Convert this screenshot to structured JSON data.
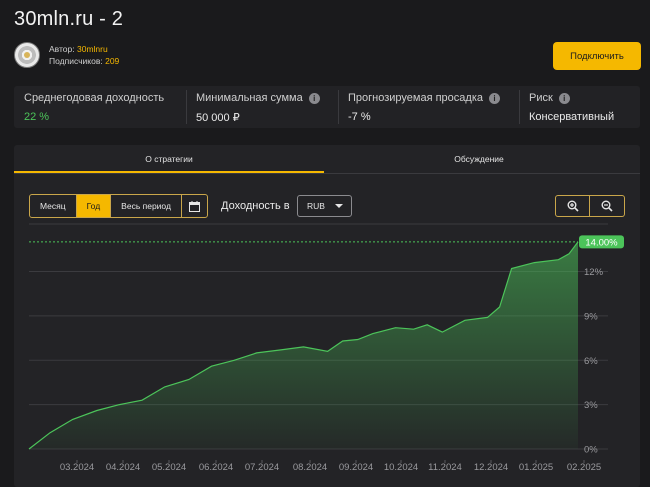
{
  "title": "30mln.ru - 2",
  "author": {
    "label": "Автор:",
    "name": "30mlnru",
    "subs_label": "Подписчиков:",
    "subs_count": "209"
  },
  "connect_label": "Подключить",
  "stats": [
    {
      "label": "Среднегодовая доходность",
      "value": "22 %",
      "has_info": false,
      "value_color": "#4cc45a"
    },
    {
      "label": "Минимальная сумма",
      "value": "50 000 ₽",
      "has_info": true
    },
    {
      "label": "Прогнозируемая просадка",
      "value": "-7 %",
      "has_info": true
    },
    {
      "label": "Риск",
      "value": "Консервативный",
      "has_info": true
    }
  ],
  "tabs": [
    {
      "label": "О стратегии",
      "active": true
    },
    {
      "label": "Обсуждение",
      "active": false
    }
  ],
  "periods": [
    {
      "label": "Месяц",
      "selected": false
    },
    {
      "label": "Год",
      "selected": true
    },
    {
      "label": "Весь период",
      "selected": false
    }
  ],
  "yield_label": "Доходность в",
  "currency": "RUB",
  "accent_color": "#f5b800",
  "chart_data": {
    "type": "area",
    "x_ticks": [
      "03.2024",
      "04.2024",
      "05.2024",
      "06.2024",
      "07.2024",
      "08.2024",
      "09.2024",
      "10.2024",
      "11.2024",
      "12.2024",
      "01.2025",
      "02.2025"
    ],
    "y_ticks": [
      "0%",
      "3%",
      "6%",
      "9%",
      "12%"
    ],
    "ylim": [
      0,
      14.4
    ],
    "current_label": "14.00%",
    "current_value": 14.0,
    "series": [
      {
        "color": "#4cc45a",
        "x": [
          "2024-02-20",
          "2024-03-05",
          "2024-03-20",
          "2024-04-05",
          "2024-04-20",
          "2024-05-05",
          "2024-05-20",
          "2024-06-05",
          "2024-06-20",
          "2024-07-05",
          "2024-07-20",
          "2024-08-05",
          "2024-08-20",
          "2024-09-05",
          "2024-09-15",
          "2024-09-25",
          "2024-10-05",
          "2024-10-20",
          "2024-11-01",
          "2024-11-10",
          "2024-11-20",
          "2024-12-05",
          "2024-12-20",
          "2024-12-28",
          "2025-01-05",
          "2025-01-20",
          "2025-02-05",
          "2025-02-12",
          "2025-02-18"
        ],
        "values": [
          0.0,
          1.1,
          2.0,
          2.6,
          3.0,
          3.3,
          4.2,
          4.7,
          5.6,
          6.0,
          6.5,
          6.7,
          6.9,
          6.6,
          7.3,
          7.4,
          7.8,
          8.2,
          8.1,
          8.4,
          7.9,
          8.7,
          8.9,
          9.6,
          12.2,
          12.6,
          12.8,
          13.2,
          14.0
        ]
      }
    ]
  }
}
